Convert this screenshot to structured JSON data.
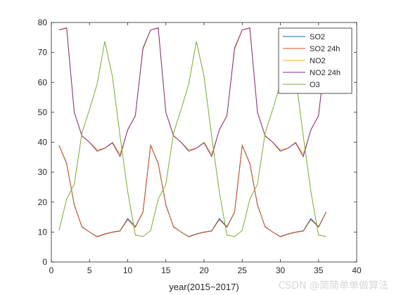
{
  "chart_data": {
    "type": "line",
    "xlabel": "year(2015~2017)",
    "ylabel": "",
    "xlim": [
      0,
      40
    ],
    "ylim": [
      0,
      80
    ],
    "xticks": [
      0,
      5,
      10,
      15,
      20,
      25,
      30,
      35,
      40
    ],
    "yticks": [
      0,
      10,
      20,
      30,
      40,
      50,
      60,
      70,
      80
    ],
    "grid": false,
    "legend_position": "top-right",
    "series": [
      {
        "name": "SO2",
        "color": "#0072bd",
        "x": [
          1,
          2,
          3,
          4,
          5,
          6,
          7,
          8,
          9,
          10,
          11,
          12,
          13,
          14,
          15,
          16,
          17,
          18,
          19,
          20,
          21,
          22,
          23,
          24,
          25,
          26,
          27,
          28,
          29,
          30,
          31,
          32,
          33,
          34,
          35,
          36
        ],
        "y": [
          39,
          33,
          19,
          11.8,
          10,
          8.5,
          9.4,
          10,
          10.4,
          14.5,
          11.8,
          16.7,
          39,
          33,
          19,
          11.8,
          10,
          8.5,
          9.4,
          10,
          10.4,
          14.5,
          11.8,
          16.7,
          39,
          33,
          19,
          11.8,
          10,
          8.5,
          9.4,
          10,
          10.4,
          14.5,
          11.8,
          16.7
        ]
      },
      {
        "name": "SO2 24h",
        "color": "#d95319",
        "x": [
          1,
          2,
          3,
          4,
          5,
          6,
          7,
          8,
          9,
          10,
          11,
          12,
          13,
          14,
          15,
          16,
          17,
          18,
          19,
          20,
          21,
          22,
          23,
          24,
          25,
          26,
          27,
          28,
          29,
          30,
          31,
          32,
          33,
          34,
          35,
          36
        ],
        "y": [
          39,
          32.8,
          19.2,
          11.7,
          10,
          8.4,
          9.3,
          9.9,
          10.3,
          14.2,
          11.6,
          16.6,
          39,
          32.8,
          19.2,
          11.7,
          10,
          8.4,
          9.3,
          9.9,
          10.3,
          14.2,
          11.6,
          16.6,
          39,
          32.8,
          19.2,
          11.7,
          10,
          8.4,
          9.3,
          9.9,
          10.3,
          14.2,
          11.6,
          16.6
        ]
      },
      {
        "name": "NO2",
        "color": "#edb120",
        "x": [
          1,
          2,
          3,
          4,
          5,
          6,
          7,
          8,
          9,
          10,
          11,
          12,
          13,
          14,
          15,
          16,
          17,
          18,
          19,
          20,
          21,
          22,
          23,
          24,
          25,
          26,
          27,
          28,
          29,
          30,
          31,
          32,
          33,
          34,
          35,
          36
        ],
        "y": [
          77.5,
          78,
          50,
          42,
          40,
          37.5,
          38,
          40,
          36,
          44,
          49,
          71,
          77.5,
          78,
          50,
          42,
          40,
          37.5,
          38,
          40,
          36,
          44,
          49,
          71,
          77.5,
          78,
          50,
          42,
          40,
          37.5,
          38,
          40,
          36,
          44,
          49,
          71
        ]
      },
      {
        "name": "NO2 24h",
        "color": "#7e2f8e",
        "x": [
          1,
          2,
          3,
          4,
          5,
          6,
          7,
          8,
          9,
          10,
          11,
          12,
          13,
          14,
          15,
          16,
          17,
          18,
          19,
          20,
          21,
          22,
          23,
          24,
          25,
          26,
          27,
          28,
          29,
          30,
          31,
          32,
          33,
          34,
          35,
          36
        ],
        "y": [
          77.5,
          78.2,
          50,
          42.2,
          40,
          37,
          38,
          39.8,
          35.2,
          44.2,
          48.8,
          71.5,
          77.5,
          78.2,
          50,
          42.2,
          40,
          37,
          38,
          39.8,
          35.2,
          44.2,
          48.8,
          71.5,
          77.5,
          78.2,
          50,
          42.2,
          40,
          37,
          38,
          39.8,
          35.2,
          44.2,
          48.8,
          71.5
        ]
      },
      {
        "name": "O3",
        "color": "#77ac30",
        "x": [
          1,
          2,
          3,
          4,
          5,
          6,
          7,
          8,
          9,
          10,
          11,
          12,
          13,
          14,
          15,
          16,
          17,
          18,
          19,
          20,
          21,
          22,
          23,
          24,
          25,
          26,
          27,
          28,
          29,
          30,
          31,
          32,
          33,
          34,
          35,
          36
        ],
        "y": [
          10.5,
          21,
          26,
          43,
          51,
          59.5,
          73.7,
          62,
          42,
          23.5,
          9,
          8.5,
          10.5,
          21,
          26,
          43,
          51,
          59.5,
          73.7,
          62,
          42,
          23.5,
          9,
          8.5,
          10.5,
          21,
          26,
          43,
          51,
          59.5,
          73.7,
          62,
          42,
          23.5,
          9,
          8.5
        ]
      }
    ]
  },
  "watermark": "CSDN @简简单单做算法"
}
